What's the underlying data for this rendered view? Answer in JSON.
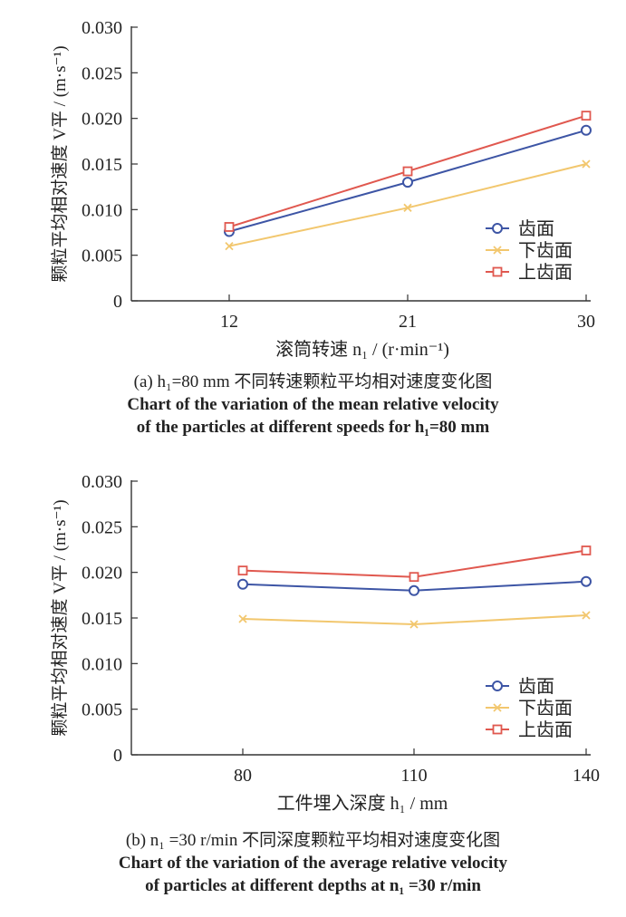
{
  "chart_data": [
    {
      "type": "line",
      "ylabel": "颗粒平均相对速度 V平 / (m·s⁻¹)",
      "xlabel": "滚筒转速 n₁ / (r·min⁻¹)",
      "categories": [
        "12",
        "21",
        "30"
      ],
      "y_ticks": [
        "0",
        "0.005",
        "0.010",
        "0.015",
        "0.020",
        "0.025",
        "0.030"
      ],
      "ylim": [
        0,
        0.03
      ],
      "legend_position": "bottom-right",
      "series": [
        {
          "name": "齿面",
          "color": "#3d55a5",
          "marker": "circle",
          "values": [
            0.0076,
            0.013,
            0.0187
          ]
        },
        {
          "name": "下齿面",
          "color": "#f2c76e",
          "marker": "x",
          "values": [
            0.006,
            0.0102,
            0.015
          ]
        },
        {
          "name": "上齿面",
          "color": "#e0584f",
          "marker": "square",
          "values": [
            0.0081,
            0.0142,
            0.0203
          ]
        }
      ],
      "caption": {
        "cn": "(a) h₁=80 mm 不同转速颗粒平均相对速度变化图",
        "en1": "Chart of the variation of the mean relative velocity",
        "en2": "of the particles at different speeds for h₁=80 mm"
      }
    },
    {
      "type": "line",
      "ylabel": "颗粒平均相对速度 V平 / (m·s⁻¹)",
      "xlabel": "工件埋入深度 h₁ / mm",
      "categories": [
        "80",
        "110",
        "140"
      ],
      "y_ticks": [
        "0",
        "0.005",
        "0.010",
        "0.015",
        "0.020",
        "0.025",
        "0.030"
      ],
      "ylim": [
        0,
        0.03
      ],
      "legend_position": "bottom-right",
      "series": [
        {
          "name": "齿面",
          "color": "#3d55a5",
          "marker": "circle",
          "values": [
            0.0187,
            0.018,
            0.019
          ]
        },
        {
          "name": "下齿面",
          "color": "#f2c76e",
          "marker": "x",
          "values": [
            0.0149,
            0.0143,
            0.0153
          ]
        },
        {
          "name": "上齿面",
          "color": "#e0584f",
          "marker": "square",
          "values": [
            0.0202,
            0.0195,
            0.0224
          ]
        }
      ],
      "caption": {
        "cn": "(b) n₁ =30 r/min 不同深度颗粒平均相对速度变化图",
        "en1": "Chart of the variation of the average relative velocity",
        "en2": "of particles at different depths at n₁ =30 r/min"
      }
    }
  ]
}
